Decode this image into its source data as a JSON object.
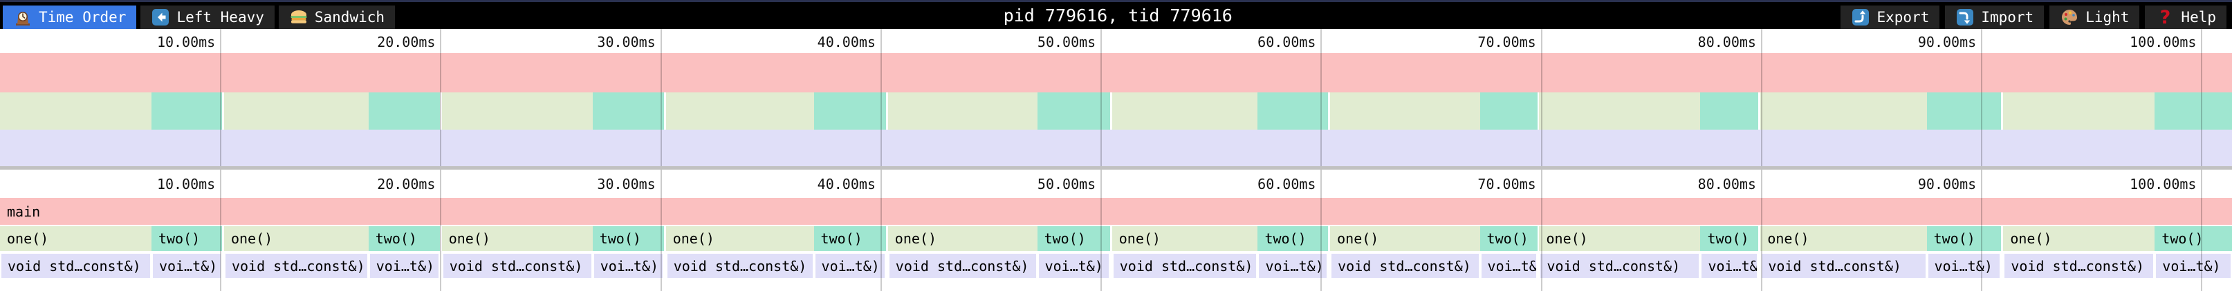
{
  "topbar": {
    "tabs": [
      {
        "id": "time-order",
        "label": "Time Order",
        "icon": "clock-icon",
        "active": true
      },
      {
        "id": "left-heavy",
        "label": "Left Heavy",
        "icon": "left-arrow-icon",
        "active": false
      },
      {
        "id": "sandwich",
        "label": "Sandwich",
        "icon": "sandwich-icon",
        "active": false
      }
    ],
    "title": "pid 779616, tid 779616",
    "actions": [
      {
        "id": "export",
        "label": "Export",
        "icon": "export-icon"
      },
      {
        "id": "import",
        "label": "Import",
        "icon": "import-icon"
      },
      {
        "id": "theme",
        "label": "Light",
        "icon": "palette-icon"
      },
      {
        "id": "help",
        "label": "Help",
        "icon": "help-icon"
      }
    ]
  },
  "colors": {
    "topbar_bg": "#000000",
    "button_bg": "#242424",
    "active_tab": "#3878e4",
    "frame_main": "#fbc0c0",
    "frame_one": "#e1ecd1",
    "frame_two": "#9fe6d0",
    "frame_child": "#e0dff8",
    "gridline": "rgba(0,0,0,0.20)"
  },
  "chart_data": {
    "type": "flamegraph",
    "total_ms": 101.4,
    "root_label": "main",
    "frame_labels": {
      "one": "one()",
      "two": "two()",
      "one_child": "void std…const&)",
      "two_child": "voi…t&)"
    },
    "ticks": [
      {
        "ms": 10,
        "label": "10.00ms"
      },
      {
        "ms": 20,
        "label": "20.00ms"
      },
      {
        "ms": 30,
        "label": "30.00ms"
      },
      {
        "ms": 40,
        "label": "40.00ms"
      },
      {
        "ms": 50,
        "label": "50.00ms"
      },
      {
        "ms": 60,
        "label": "60.00ms"
      },
      {
        "ms": 70,
        "label": "70.00ms"
      },
      {
        "ms": 80,
        "label": "80.00ms"
      },
      {
        "ms": 90,
        "label": "90.00ms"
      },
      {
        "ms": 100,
        "label": "100.00ms"
      }
    ],
    "iterations": [
      {
        "one_start": 0.0,
        "two_start": 6.88,
        "two_end": 10.08
      },
      {
        "one_start": 10.18,
        "two_start": 16.74,
        "two_end": 19.98
      },
      {
        "one_start": 20.07,
        "two_start": 26.92,
        "two_end": 30.16
      },
      {
        "one_start": 30.25,
        "two_start": 36.97,
        "two_end": 40.25
      },
      {
        "one_start": 40.34,
        "two_start": 47.12,
        "two_end": 50.43
      },
      {
        "one_start": 50.52,
        "two_start": 57.14,
        "two_end": 60.33
      },
      {
        "one_start": 60.43,
        "two_start": 67.23,
        "two_end": 69.84
      },
      {
        "one_start": 69.93,
        "two_start": 77.25,
        "two_end": 79.89
      },
      {
        "one_start": 79.98,
        "two_start": 87.53,
        "two_end": 90.92
      },
      {
        "one_start": 91.01,
        "two_start": 97.89,
        "two_end": 101.4
      }
    ]
  }
}
